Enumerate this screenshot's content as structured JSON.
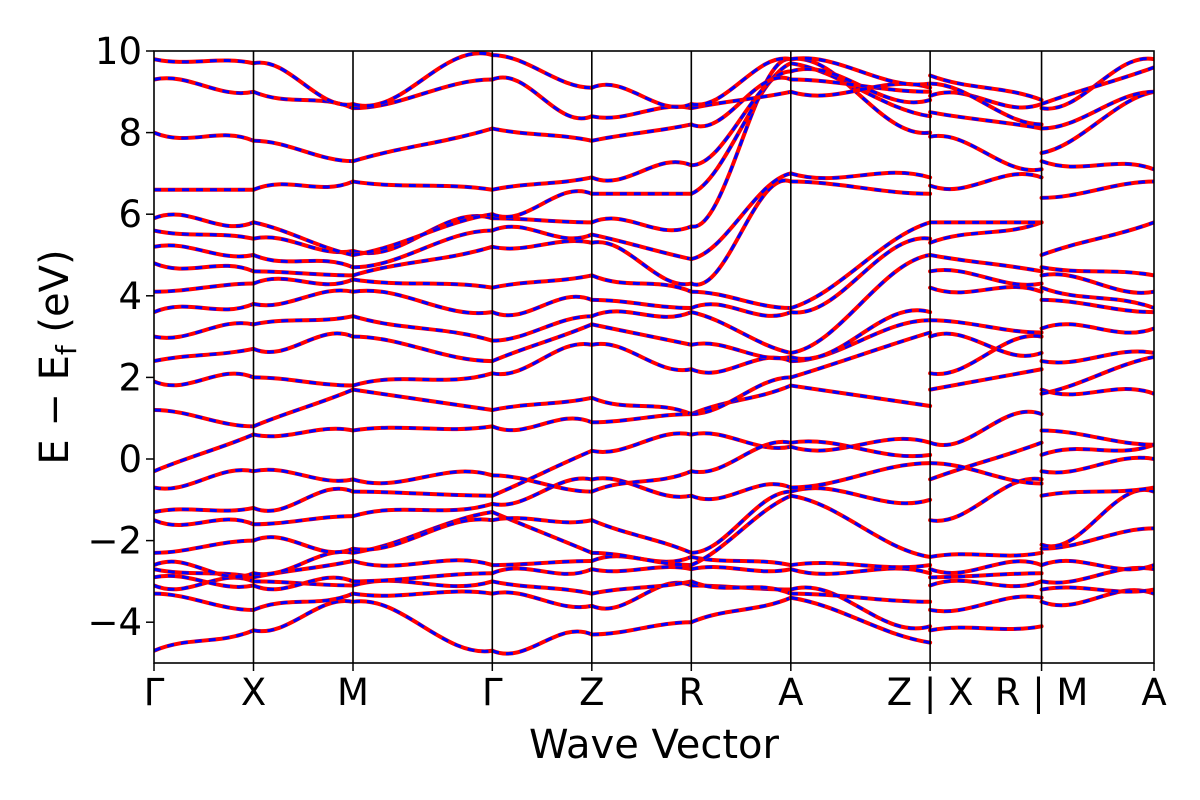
{
  "chart_data": {
    "type": "line",
    "title": "",
    "xlabel": "Wave Vector",
    "ylabel": "E − E_f (eV)",
    "ylabel_main": "E − E",
    "ylabel_sub": "f",
    "ylabel_tail": " (eV)",
    "ylim": [
      -5,
      10
    ],
    "yticks": [
      -4,
      -2,
      0,
      2,
      4,
      6,
      8,
      10
    ],
    "grid": false,
    "legend": "none",
    "colors": {
      "dft": "#0000ff",
      "model": "#ff0000",
      "axis": "#000000"
    },
    "kpath": [
      "Γ",
      "X",
      "M",
      "Γ",
      "Z",
      "R",
      "A",
      "Z|X",
      "R|M",
      "A"
    ],
    "xticks": [
      {
        "label": "Γ",
        "pos": 0.0
      },
      {
        "label": "X",
        "pos": 1.0
      },
      {
        "label": "M",
        "pos": 2.0
      },
      {
        "label": "Γ",
        "pos": 3.4
      },
      {
        "label": "Z",
        "pos": 4.4
      },
      {
        "label": "R",
        "pos": 5.4
      },
      {
        "label": "A",
        "pos": 6.4
      },
      {
        "label": "Z | X",
        "pos": 7.8
      },
      {
        "label": "R | M",
        "pos": 8.92
      },
      {
        "label": "A",
        "pos": 10.05
      }
    ],
    "xlim": [
      0,
      10.05
    ],
    "segments": [
      {
        "from": 0.0,
        "to": 1.0,
        "bands": [
          [
            -4.7,
            -4.2
          ],
          [
            -3.3,
            -3.7
          ],
          [
            -3.1,
            -3.0
          ],
          [
            -2.9,
            -3.1
          ],
          [
            -2.7,
            -2.9
          ],
          [
            -2.6,
            -2.8
          ],
          [
            -2.3,
            -2.0
          ],
          [
            -1.5,
            -1.6
          ],
          [
            -1.3,
            -1.2
          ],
          [
            -0.7,
            -0.3
          ],
          [
            -0.3,
            0.6
          ],
          [
            1.2,
            0.8
          ],
          [
            1.9,
            2.0
          ],
          [
            2.4,
            2.7
          ],
          [
            3.0,
            3.3
          ],
          [
            3.6,
            3.8
          ],
          [
            4.1,
            4.3
          ],
          [
            4.8,
            4.6
          ],
          [
            5.2,
            5.0
          ],
          [
            5.6,
            5.4
          ],
          [
            5.9,
            5.8
          ],
          [
            6.6,
            6.6
          ],
          [
            8.0,
            7.8
          ],
          [
            9.3,
            9.0
          ],
          [
            9.8,
            9.7
          ]
        ]
      },
      {
        "from": 1.0,
        "to": 2.0,
        "bands": [
          [
            -4.2,
            -3.5
          ],
          [
            -3.7,
            -3.3
          ],
          [
            -3.0,
            -3.1
          ],
          [
            -3.1,
            -3.0
          ],
          [
            -2.9,
            -2.5
          ],
          [
            -2.8,
            -2.3
          ],
          [
            -2.0,
            -2.2
          ],
          [
            -1.6,
            -1.4
          ],
          [
            -1.2,
            -0.8
          ],
          [
            -0.3,
            -0.5
          ],
          [
            0.6,
            0.7
          ],
          [
            0.8,
            1.7
          ],
          [
            2.0,
            1.8
          ],
          [
            2.7,
            3.0
          ],
          [
            3.3,
            3.5
          ],
          [
            3.8,
            4.1
          ],
          [
            4.3,
            4.4
          ],
          [
            4.6,
            4.5
          ],
          [
            5.0,
            4.7
          ],
          [
            5.4,
            5.1
          ],
          [
            5.8,
            5.0
          ],
          [
            6.6,
            6.8
          ],
          [
            7.8,
            7.3
          ],
          [
            9.0,
            8.6
          ],
          [
            9.7,
            8.7
          ]
        ]
      },
      {
        "from": 2.0,
        "to": 3.4,
        "bands": [
          [
            -3.5,
            -4.7
          ],
          [
            -3.3,
            -3.3
          ],
          [
            -3.1,
            -3.0
          ],
          [
            -3.0,
            -2.8
          ],
          [
            -2.5,
            -2.6
          ],
          [
            -2.3,
            -1.3
          ],
          [
            -2.2,
            -1.5
          ],
          [
            -1.4,
            -1.1
          ],
          [
            -0.8,
            -0.9
          ],
          [
            -0.5,
            -0.4
          ],
          [
            0.7,
            0.8
          ],
          [
            1.7,
            1.2
          ],
          [
            1.8,
            2.1
          ],
          [
            3.0,
            2.4
          ],
          [
            3.5,
            2.9
          ],
          [
            4.1,
            3.6
          ],
          [
            4.4,
            4.2
          ],
          [
            4.5,
            5.2
          ],
          [
            4.7,
            5.6
          ],
          [
            5.1,
            5.9
          ],
          [
            5.0,
            6.0
          ],
          [
            6.8,
            6.6
          ],
          [
            7.3,
            8.1
          ],
          [
            8.6,
            9.3
          ],
          [
            8.7,
            9.9
          ]
        ]
      },
      {
        "from": 3.4,
        "to": 4.4,
        "bands": [
          [
            -4.7,
            -4.3
          ],
          [
            -3.3,
            -3.6
          ],
          [
            -3.0,
            -3.3
          ],
          [
            -2.8,
            -2.7
          ],
          [
            -2.6,
            -2.5
          ],
          [
            -1.3,
            -2.3
          ],
          [
            -1.5,
            -1.5
          ],
          [
            -1.1,
            -0.5
          ],
          [
            -0.9,
            0.2
          ],
          [
            -0.4,
            -0.8
          ],
          [
            0.8,
            0.9
          ],
          [
            1.2,
            1.5
          ],
          [
            2.1,
            2.8
          ],
          [
            2.4,
            3.3
          ],
          [
            2.9,
            3.5
          ],
          [
            3.6,
            3.9
          ],
          [
            4.2,
            4.5
          ],
          [
            5.2,
            5.3
          ],
          [
            5.6,
            5.5
          ],
          [
            5.9,
            5.8
          ],
          [
            6.0,
            6.5
          ],
          [
            6.6,
            6.9
          ],
          [
            8.1,
            7.8
          ],
          [
            9.3,
            8.4
          ],
          [
            9.9,
            9.1
          ]
        ]
      },
      {
        "from": 4.4,
        "to": 5.4,
        "bands": [
          [
            -4.3,
            -4.0
          ],
          [
            -3.6,
            -3.1
          ],
          [
            -3.3,
            -3.0
          ],
          [
            -2.7,
            -2.7
          ],
          [
            -2.5,
            -2.4
          ],
          [
            -2.3,
            -2.6
          ],
          [
            -1.5,
            -2.3
          ],
          [
            -0.5,
            -0.9
          ],
          [
            0.2,
            0.6
          ],
          [
            -0.8,
            -0.3
          ],
          [
            0.9,
            1.1
          ],
          [
            1.5,
            1.1
          ],
          [
            2.8,
            2.2
          ],
          [
            3.3,
            2.8
          ],
          [
            3.5,
            3.6
          ],
          [
            3.9,
            3.7
          ],
          [
            4.5,
            4.1
          ],
          [
            5.3,
            4.3
          ],
          [
            5.5,
            4.9
          ],
          [
            5.8,
            5.7
          ],
          [
            6.5,
            6.5
          ],
          [
            6.9,
            7.2
          ],
          [
            7.8,
            8.2
          ],
          [
            8.4,
            8.6
          ],
          [
            9.1,
            8.7
          ]
        ]
      },
      {
        "from": 5.4,
        "to": 6.4,
        "bands": [
          [
            -4.0,
            -3.4
          ],
          [
            -3.1,
            -3.2
          ],
          [
            -3.0,
            -3.3
          ],
          [
            -2.7,
            -2.7
          ],
          [
            -2.4,
            -2.6
          ],
          [
            -2.6,
            -0.9
          ],
          [
            -2.3,
            -0.8
          ],
          [
            -0.9,
            -0.7
          ],
          [
            0.6,
            0.3
          ],
          [
            -0.3,
            0.4
          ],
          [
            1.1,
            1.8
          ],
          [
            1.1,
            2.0
          ],
          [
            2.2,
            2.4
          ],
          [
            2.8,
            2.5
          ],
          [
            3.6,
            2.6
          ],
          [
            3.7,
            3.6
          ],
          [
            4.1,
            3.7
          ],
          [
            4.3,
            6.8
          ],
          [
            4.9,
            7.0
          ],
          [
            5.7,
            9.8
          ],
          [
            6.5,
            9.7
          ],
          [
            7.2,
            9.5
          ],
          [
            8.2,
            9.3
          ],
          [
            8.6,
            9.0
          ],
          [
            8.7,
            9.8
          ]
        ]
      },
      {
        "from": 6.4,
        "to": 7.8,
        "bands": [
          [
            -3.4,
            -4.5
          ],
          [
            -3.2,
            -4.1
          ],
          [
            -3.3,
            -3.5
          ],
          [
            -2.7,
            -2.8
          ],
          [
            -2.6,
            -2.6
          ],
          [
            -0.9,
            -2.4
          ],
          [
            -0.8,
            -1.0
          ],
          [
            -0.7,
            -0.1
          ],
          [
            0.3,
            0.4
          ],
          [
            0.4,
            0.1
          ],
          [
            1.8,
            1.3
          ],
          [
            2.0,
            3.1
          ],
          [
            2.4,
            3.4
          ],
          [
            2.5,
            3.6
          ],
          [
            2.6,
            5.0
          ],
          [
            3.6,
            5.4
          ],
          [
            3.7,
            5.8
          ],
          [
            6.8,
            6.5
          ],
          [
            7.0,
            6.9
          ],
          [
            9.8,
            8.0
          ],
          [
            9.7,
            8.4
          ],
          [
            9.5,
            8.8
          ],
          [
            9.3,
            9.0
          ],
          [
            9.0,
            9.1
          ],
          [
            9.8,
            9.2
          ]
        ]
      },
      {
        "from": 7.8,
        "to": 8.92,
        "bands": [
          [
            -4.2,
            -4.1
          ],
          [
            -3.7,
            -3.4
          ],
          [
            -3.1,
            -3.0
          ],
          [
            -2.9,
            -2.8
          ],
          [
            -2.7,
            -2.6
          ],
          [
            -2.4,
            -2.3
          ],
          [
            -1.5,
            -0.5
          ],
          [
            -0.5,
            0.4
          ],
          [
            -0.1,
            -0.6
          ],
          [
            0.4,
            1.1
          ],
          [
            1.7,
            2.2
          ],
          [
            2.1,
            3.0
          ],
          [
            3.0,
            2.6
          ],
          [
            3.4,
            3.1
          ],
          [
            4.2,
            4.1
          ],
          [
            4.6,
            4.3
          ],
          [
            5.0,
            4.6
          ],
          [
            5.3,
            5.8
          ],
          [
            5.8,
            5.8
          ],
          [
            6.7,
            6.9
          ],
          [
            7.9,
            7.1
          ],
          [
            8.5,
            8.1
          ],
          [
            8.9,
            8.7
          ],
          [
            9.2,
            8.2
          ],
          [
            9.4,
            8.8
          ]
        ]
      },
      {
        "from": 8.92,
        "to": 10.05,
        "bands": [
          [
            -3.5,
            -3.3
          ],
          [
            -3.2,
            -3.2
          ],
          [
            -3.0,
            -2.7
          ],
          [
            -2.6,
            -2.6
          ],
          [
            -2.2,
            -1.7
          ],
          [
            -2.1,
            -0.8
          ],
          [
            -0.9,
            -0.7
          ],
          [
            -0.3,
            0.0
          ],
          [
            0.1,
            0.35
          ],
          [
            0.7,
            0.35
          ],
          [
            1.7,
            1.6
          ],
          [
            1.6,
            2.5
          ],
          [
            2.4,
            2.6
          ],
          [
            3.2,
            3.2
          ],
          [
            3.9,
            3.6
          ],
          [
            4.2,
            3.7
          ],
          [
            4.5,
            4.1
          ],
          [
            4.7,
            4.5
          ],
          [
            5.0,
            5.8
          ],
          [
            6.4,
            6.8
          ],
          [
            7.3,
            7.1
          ],
          [
            7.5,
            9.0
          ],
          [
            8.6,
            9.8
          ],
          [
            8.7,
            9.6
          ],
          [
            8.1,
            9.0
          ]
        ]
      }
    ]
  }
}
